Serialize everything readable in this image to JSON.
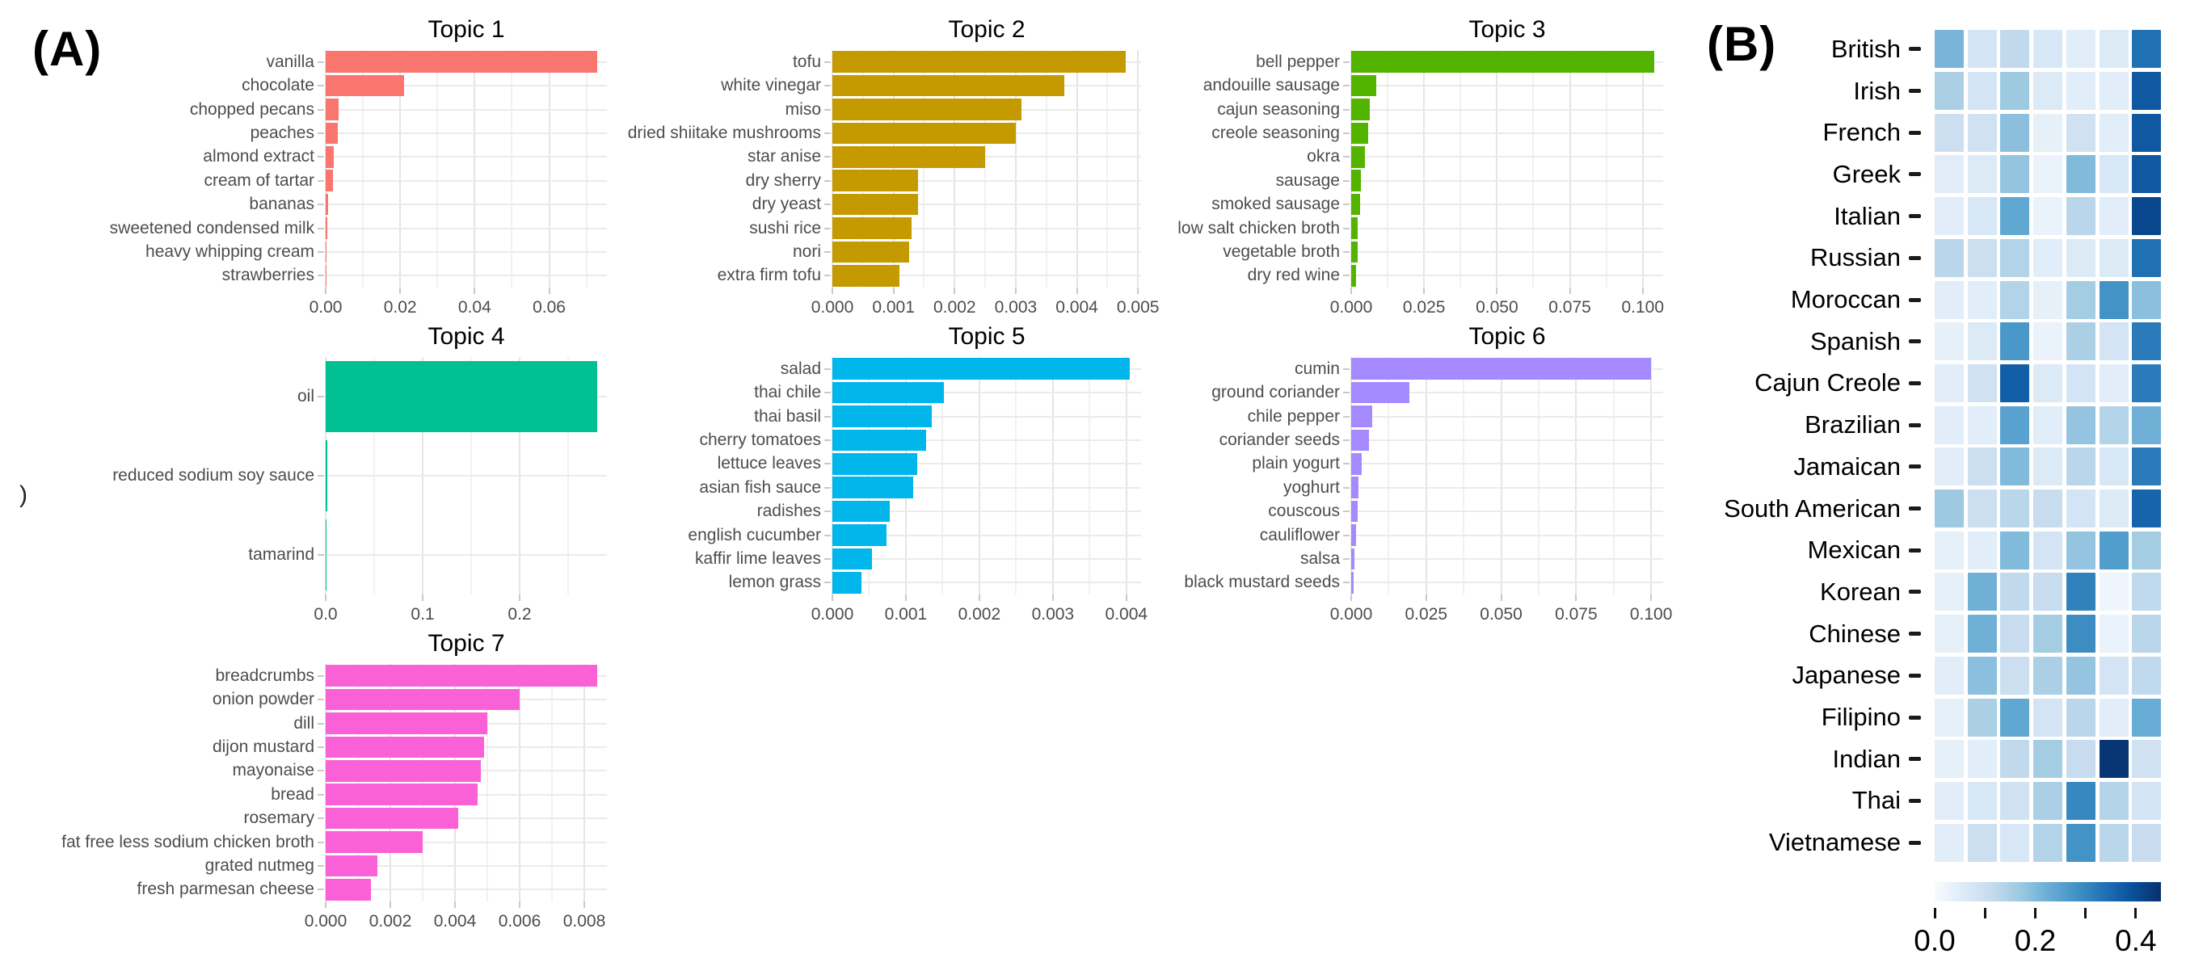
{
  "panel_a": {
    "label": "(A)",
    "stray_character": ")",
    "charts": [
      {
        "title": "Topic 1",
        "color": "#F8766D",
        "xmax": 0.0755,
        "x_ticks": [
          {
            "v": 0,
            "label": "0.00"
          },
          {
            "v": 0.02,
            "label": "0.02"
          },
          {
            "v": 0.04,
            "label": "0.04"
          },
          {
            "v": 0.06,
            "label": "0.06"
          }
        ],
        "items": [
          {
            "label": "vanilla",
            "value": 0.073
          },
          {
            "label": "chocolate",
            "value": 0.021
          },
          {
            "label": "chopped pecans",
            "value": 0.0035
          },
          {
            "label": "peaches",
            "value": 0.0033
          },
          {
            "label": "almond extract",
            "value": 0.0022
          },
          {
            "label": "cream of tartar",
            "value": 0.002
          },
          {
            "label": "bananas",
            "value": 0.0006
          },
          {
            "label": "sweetened condensed milk",
            "value": 0.0005
          },
          {
            "label": "heavy whipping cream",
            "value": 0.0002
          },
          {
            "label": "strawberries",
            "value": 0.0001
          }
        ]
      },
      {
        "title": "Topic 2",
        "color": "#C49A00",
        "xmax": 0.00505,
        "x_ticks": [
          {
            "v": 0,
            "label": "0.000"
          },
          {
            "v": 0.001,
            "label": "0.001"
          },
          {
            "v": 0.002,
            "label": "0.002"
          },
          {
            "v": 0.003,
            "label": "0.003"
          },
          {
            "v": 0.004,
            "label": "0.004"
          },
          {
            "v": 0.005,
            "label": "0.005"
          }
        ],
        "items": [
          {
            "label": "tofu",
            "value": 0.0048
          },
          {
            "label": "white vinegar",
            "value": 0.0038
          },
          {
            "label": "miso",
            "value": 0.0031
          },
          {
            "label": "dried shiitake mushrooms",
            "value": 0.003
          },
          {
            "label": "star anise",
            "value": 0.0025
          },
          {
            "label": "dry sherry",
            "value": 0.0014
          },
          {
            "label": "dry yeast",
            "value": 0.0014
          },
          {
            "label": "sushi rice",
            "value": 0.0013
          },
          {
            "label": "nori",
            "value": 0.00125
          },
          {
            "label": "extra firm tofu",
            "value": 0.0011
          }
        ]
      },
      {
        "title": "Topic 3",
        "color": "#53B400",
        "xmax": 0.107,
        "x_ticks": [
          {
            "v": 0,
            "label": "0.000"
          },
          {
            "v": 0.025,
            "label": "0.025"
          },
          {
            "v": 0.05,
            "label": "0.050"
          },
          {
            "v": 0.075,
            "label": "0.075"
          },
          {
            "v": 0.1,
            "label": "0.100"
          }
        ],
        "items": [
          {
            "label": "bell pepper",
            "value": 0.104
          },
          {
            "label": "andouille sausage",
            "value": 0.0085
          },
          {
            "label": "cajun seasoning",
            "value": 0.0065
          },
          {
            "label": "creole seasoning",
            "value": 0.0057
          },
          {
            "label": "okra",
            "value": 0.0046
          },
          {
            "label": "sausage",
            "value": 0.0032
          },
          {
            "label": "smoked sausage",
            "value": 0.003
          },
          {
            "label": "low salt chicken broth",
            "value": 0.0022
          },
          {
            "label": "vegetable broth",
            "value": 0.0021
          },
          {
            "label": "dry red wine",
            "value": 0.0016
          }
        ]
      },
      {
        "title": "Topic 4",
        "color": "#00C094",
        "xmax": 0.29,
        "x_ticks": [
          {
            "v": 0,
            "label": "0.0"
          },
          {
            "v": 0.1,
            "label": "0.1"
          },
          {
            "v": 0.2,
            "label": "0.2"
          }
        ],
        "items": [
          {
            "label": "oil",
            "value": 0.28
          },
          {
            "label": "reduced sodium soy sauce",
            "value": 0.002
          },
          {
            "label": "tamarind",
            "value": 0.0005
          }
        ]
      },
      {
        "title": "Topic 5",
        "color": "#00B6EB",
        "xmax": 0.0042,
        "x_ticks": [
          {
            "v": 0,
            "label": "0.000"
          },
          {
            "v": 0.001,
            "label": "0.001"
          },
          {
            "v": 0.002,
            "label": "0.002"
          },
          {
            "v": 0.003,
            "label": "0.003"
          },
          {
            "v": 0.004,
            "label": "0.004"
          }
        ],
        "items": [
          {
            "label": "salad",
            "value": 0.00405
          },
          {
            "label": "thai chile",
            "value": 0.00152
          },
          {
            "label": "thai basil",
            "value": 0.00135
          },
          {
            "label": "cherry tomatoes",
            "value": 0.00127
          },
          {
            "label": "lettuce leaves",
            "value": 0.00115
          },
          {
            "label": "asian fish sauce",
            "value": 0.0011
          },
          {
            "label": "radishes",
            "value": 0.00078
          },
          {
            "label": "english cucumber",
            "value": 0.00074
          },
          {
            "label": "kaffir lime leaves",
            "value": 0.00054
          },
          {
            "label": "lemon grass",
            "value": 0.0004
          }
        ]
      },
      {
        "title": "Topic 6",
        "color": "#A58AFF",
        "xmax": 0.104,
        "x_ticks": [
          {
            "v": 0,
            "label": "0.000"
          },
          {
            "v": 0.025,
            "label": "0.025"
          },
          {
            "v": 0.05,
            "label": "0.050"
          },
          {
            "v": 0.075,
            "label": "0.075"
          },
          {
            "v": 0.1,
            "label": "0.100"
          }
        ],
        "items": [
          {
            "label": "cumin",
            "value": 0.1
          },
          {
            "label": "ground coriander",
            "value": 0.0195
          },
          {
            "label": "chile pepper",
            "value": 0.007
          },
          {
            "label": "coriander seeds",
            "value": 0.006
          },
          {
            "label": "plain yogurt",
            "value": 0.0035
          },
          {
            "label": "yoghurt",
            "value": 0.0025
          },
          {
            "label": "couscous",
            "value": 0.0022
          },
          {
            "label": "cauliflower",
            "value": 0.0015
          },
          {
            "label": "salsa",
            "value": 0.001
          },
          {
            "label": "black mustard seeds",
            "value": 0.0008
          }
        ]
      },
      {
        "title": "Topic 7",
        "color": "#FB61D7",
        "xmax": 0.0087,
        "x_ticks": [
          {
            "v": 0,
            "label": "0.000"
          },
          {
            "v": 0.002,
            "label": "0.002"
          },
          {
            "v": 0.004,
            "label": "0.004"
          },
          {
            "v": 0.006,
            "label": "0.006"
          },
          {
            "v": 0.008,
            "label": "0.008"
          }
        ],
        "items": [
          {
            "label": "breadcrumbs",
            "value": 0.0084
          },
          {
            "label": "onion powder",
            "value": 0.006
          },
          {
            "label": "dill",
            "value": 0.005
          },
          {
            "label": "dijon mustard",
            "value": 0.0049
          },
          {
            "label": "mayonaise",
            "value": 0.0048
          },
          {
            "label": "bread",
            "value": 0.0047
          },
          {
            "label": "rosemary",
            "value": 0.0041
          },
          {
            "label": "fat free less sodium chicken broth",
            "value": 0.003
          },
          {
            "label": "grated nutmeg",
            "value": 0.0016
          },
          {
            "label": "fresh parmesan cheese",
            "value": 0.0014
          }
        ]
      }
    ]
  },
  "panel_b": {
    "label": "(B)",
    "heatmap": {
      "columns": 7,
      "vmax": 0.45,
      "colormap_name": "Blues",
      "colormap_stops": [
        "#F7FBFF",
        "#DEEBF7",
        "#C6DBEF",
        "#9ECAE1",
        "#6BAED6",
        "#4292C6",
        "#2171B5",
        "#08519C",
        "#08306B"
      ],
      "rows": [
        "British",
        "Irish",
        "French",
        "Greek",
        "Italian",
        "Russian",
        "Moroccan",
        "Spanish",
        "Cajun Creole",
        "Brazilian",
        "Jamaican",
        "South American",
        "Mexican",
        "Korean",
        "Chinese",
        "Japanese",
        "Filipino",
        "Indian",
        "Thai",
        "Vietnamese"
      ],
      "values": [
        [
          0.21,
          0.08,
          0.12,
          0.07,
          0.05,
          0.06,
          0.34
        ],
        [
          0.15,
          0.08,
          0.17,
          0.06,
          0.05,
          0.05,
          0.38
        ],
        [
          0.1,
          0.09,
          0.19,
          0.04,
          0.09,
          0.05,
          0.38
        ],
        [
          0.05,
          0.06,
          0.18,
          0.03,
          0.2,
          0.07,
          0.38
        ],
        [
          0.05,
          0.07,
          0.24,
          0.03,
          0.13,
          0.05,
          0.41
        ],
        [
          0.13,
          0.1,
          0.14,
          0.05,
          0.06,
          0.06,
          0.34
        ],
        [
          0.05,
          0.05,
          0.14,
          0.04,
          0.16,
          0.28,
          0.19
        ],
        [
          0.04,
          0.06,
          0.27,
          0.03,
          0.15,
          0.08,
          0.32
        ],
        [
          0.05,
          0.09,
          0.37,
          0.06,
          0.08,
          0.05,
          0.32
        ],
        [
          0.05,
          0.05,
          0.25,
          0.05,
          0.18,
          0.14,
          0.22
        ],
        [
          0.05,
          0.1,
          0.2,
          0.06,
          0.13,
          0.07,
          0.32
        ],
        [
          0.17,
          0.1,
          0.13,
          0.11,
          0.08,
          0.06,
          0.36
        ],
        [
          0.04,
          0.05,
          0.2,
          0.08,
          0.18,
          0.26,
          0.16
        ],
        [
          0.04,
          0.22,
          0.12,
          0.11,
          0.31,
          0.02,
          0.12
        ],
        [
          0.04,
          0.22,
          0.11,
          0.16,
          0.29,
          0.03,
          0.13
        ],
        [
          0.05,
          0.19,
          0.1,
          0.15,
          0.18,
          0.08,
          0.12
        ],
        [
          0.04,
          0.15,
          0.24,
          0.08,
          0.13,
          0.05,
          0.23
        ],
        [
          0.04,
          0.05,
          0.12,
          0.16,
          0.11,
          0.44,
          0.09
        ],
        [
          0.05,
          0.07,
          0.09,
          0.15,
          0.3,
          0.14,
          0.08
        ],
        [
          0.05,
          0.1,
          0.07,
          0.14,
          0.28,
          0.13,
          0.11
        ]
      ]
    },
    "colorbar": {
      "ticks": [
        {
          "v": 0.0,
          "label": "0.0"
        },
        {
          "v": 0.1,
          "label": ""
        },
        {
          "v": 0.2,
          "label": "0.2"
        },
        {
          "v": 0.3,
          "label": ""
        },
        {
          "v": 0.4,
          "label": "0.4"
        }
      ]
    }
  }
}
